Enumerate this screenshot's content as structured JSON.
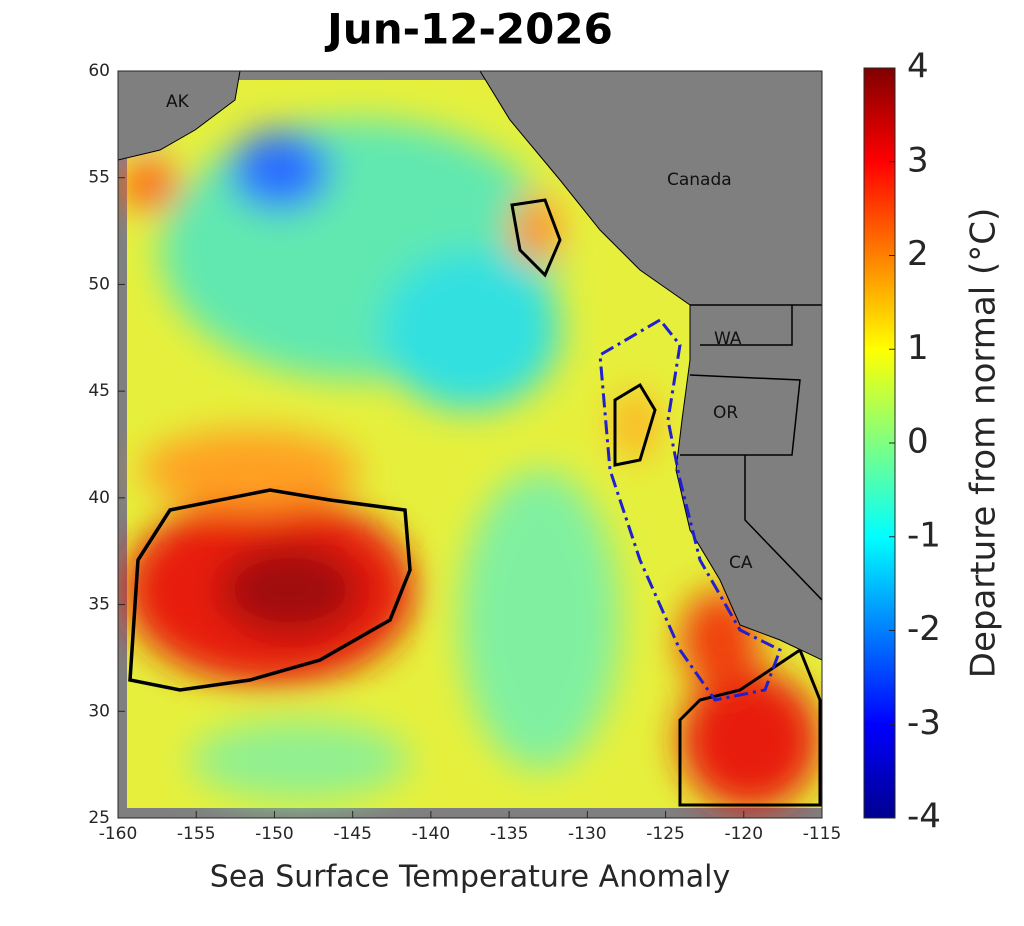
{
  "title": "Jun-12-2026",
  "x_label": "Sea Surface Temperature Anomaly",
  "colorbar_label": "Departure from normal (°C)",
  "xlim": [
    -160,
    -115
  ],
  "xticks": [
    -160,
    -155,
    -150,
    -145,
    -140,
    -135,
    -130,
    -125,
    -120,
    -115
  ],
  "ylim": [
    25,
    60
  ],
  "yticks": [
    25,
    30,
    35,
    40,
    45,
    50,
    55,
    60
  ],
  "colorbar": {
    "lim": [
      -4,
      4
    ],
    "ticks": [
      -4,
      -3,
      -2,
      -1,
      0,
      1,
      2,
      3,
      4
    ]
  },
  "places": [
    "AK",
    "Canada",
    "WA",
    "OR",
    "CA"
  ]
}
